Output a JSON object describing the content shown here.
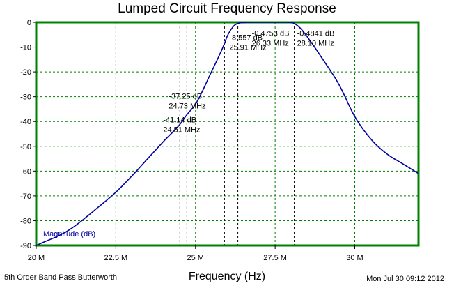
{
  "page": {
    "title": "Lumped Circuit Frequency Response",
    "footer_left": "5th Order Band Pass Butterworth",
    "footer_right": "Mon Jul 30 09:12 2012"
  },
  "chart_data": {
    "type": "line",
    "title": "Lumped Circuit Frequency Response",
    "xlabel": "Frequency (Hz)",
    "ylabel": "",
    "xlim": [
      20,
      32
    ],
    "ylim": [
      -90,
      0
    ],
    "x_unit": "MHz",
    "x_ticks": [
      20,
      22.5,
      25,
      27.5,
      30
    ],
    "x_tick_labels": [
      "20 M",
      "22.5 M",
      "25 M",
      "27.5 M",
      "30 M"
    ],
    "y_ticks": [
      0,
      -10,
      -20,
      -30,
      -40,
      -50,
      -60,
      -70,
      -80,
      -90
    ],
    "grid": true,
    "colors": {
      "frame": "#008000",
      "grid": "#008000",
      "trace": "#00009c",
      "markers": "#000000"
    },
    "series": [
      {
        "name": "Magnitude (dB)",
        "x": [
          20,
          21,
          22,
          22.5,
          23,
          23.5,
          24,
          24.51,
          24.73,
          25,
          25.5,
          25.91,
          26,
          26.2,
          26.33,
          26.5,
          27,
          27.5,
          27.8,
          28,
          28.1,
          28.3,
          28.6,
          29,
          29.5,
          30,
          30.5,
          31,
          31.5,
          32
        ],
        "values": [
          -90,
          -84,
          -74,
          -68.5,
          -62,
          -55,
          -48,
          -41.14,
          -37.25,
          -33,
          -20,
          -8.557,
          -5.5,
          -1.5,
          -0.4753,
          -0.1,
          0,
          0,
          0,
          -0.1,
          -0.4841,
          -2.5,
          -7.5,
          -15,
          -25,
          -38,
          -47,
          -53,
          -57,
          -61
        ]
      }
    ],
    "markers": [
      {
        "x": 24.51,
        "y": -41.14,
        "label_db": "-41.14 dB",
        "label_freq": "24.51 MHz"
      },
      {
        "x": 24.73,
        "y": -37.25,
        "label_db": "-37.25 dB",
        "label_freq": "24.73 MHz"
      },
      {
        "x": 25.91,
        "y": -8.557,
        "label_db": "-8.557 dB",
        "label_freq": "25.91 MHz"
      },
      {
        "x": 26.33,
        "y": -0.4753,
        "label_db": "-0.4753 dB",
        "label_freq": "26.33 MHz"
      },
      {
        "x": 28.1,
        "y": -0.4841,
        "label_db": "-0.4841 dB",
        "label_freq": "28.10 MHz"
      }
    ]
  }
}
